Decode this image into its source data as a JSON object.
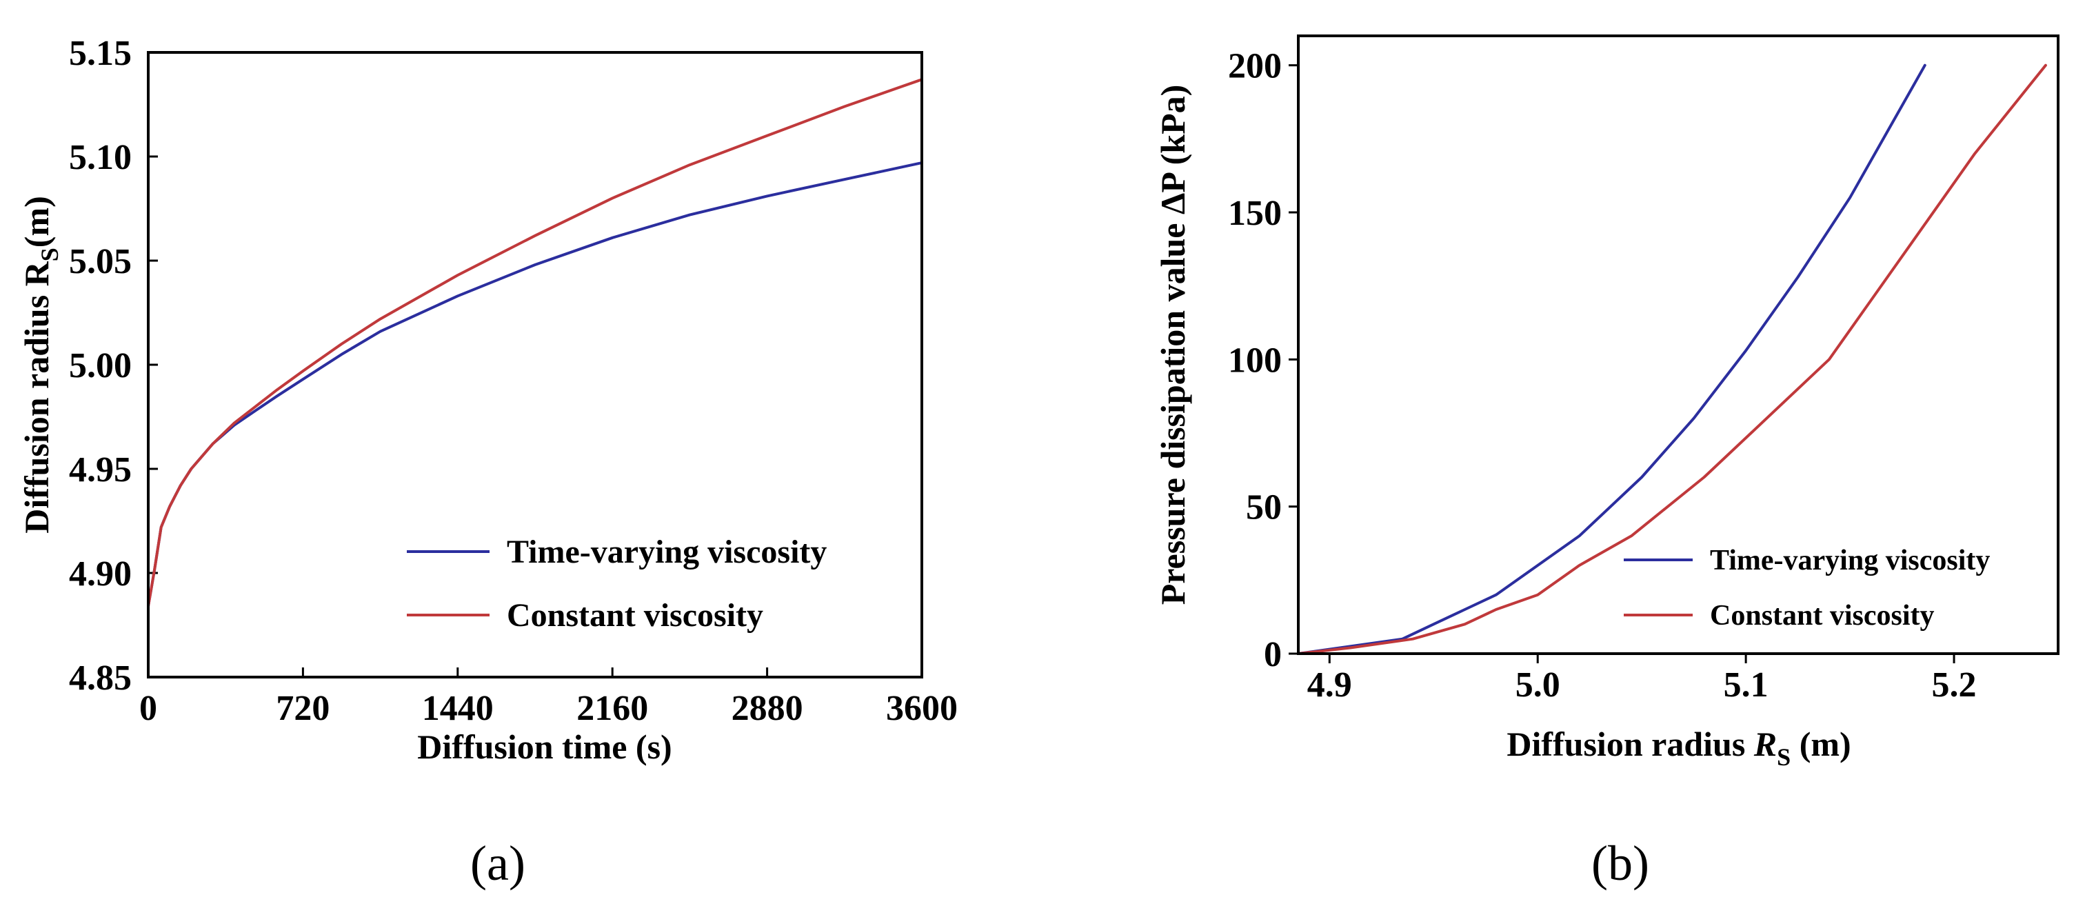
{
  "chart_data": [
    {
      "panel": "(a)",
      "type": "line",
      "xlabel": "Diffusion time (s)",
      "ylabel_main": "Diffusion radius R",
      "ylabel_sub": "S",
      "ylabel_unit": "(m)",
      "xlim": [
        0,
        3600
      ],
      "ylim": [
        4.85,
        5.15
      ],
      "xticks": [
        0,
        720,
        1440,
        2160,
        2880,
        3600
      ],
      "yticks": [
        4.85,
        4.9,
        4.95,
        5.0,
        5.05,
        5.1,
        5.15
      ],
      "xtick_labels": [
        "0",
        "720",
        "1440",
        "2160",
        "2880",
        "3600"
      ],
      "ytick_labels": [
        "4.85",
        "4.90",
        "4.95",
        "5.00",
        "5.05",
        "5.10",
        "5.15"
      ],
      "legend_position": "bottom-right",
      "series": [
        {
          "name": "Time-varying viscosity",
          "color": "#2b2e9e",
          "x": [
            0,
            30,
            60,
            100,
            150,
            200,
            300,
            400,
            500,
            600,
            720,
            900,
            1080,
            1440,
            1800,
            2160,
            2520,
            2880,
            3240,
            3600
          ],
          "y": [
            4.884,
            4.902,
            4.922,
            4.932,
            4.942,
            4.95,
            4.962,
            4.971,
            4.978,
            4.985,
            4.993,
            5.005,
            5.016,
            5.033,
            5.048,
            5.061,
            5.072,
            5.081,
            5.089,
            5.097
          ]
        },
        {
          "name": "Constant viscosity",
          "color": "#c0393b",
          "x": [
            0,
            30,
            60,
            100,
            150,
            200,
            300,
            400,
            500,
            600,
            720,
            900,
            1080,
            1440,
            1800,
            2160,
            2520,
            2880,
            3240,
            3600
          ],
          "y": [
            4.884,
            4.902,
            4.922,
            4.932,
            4.942,
            4.95,
            4.962,
            4.972,
            4.98,
            4.988,
            4.997,
            5.01,
            5.022,
            5.043,
            5.062,
            5.08,
            5.096,
            5.11,
            5.124,
            5.137
          ]
        }
      ]
    },
    {
      "panel": "(b)",
      "type": "line",
      "xlabel_main": "Diffusion radius ",
      "xlabel_symbol": "R",
      "xlabel_sub": "S",
      "xlabel_unit": " (m)",
      "ylabel": "Pressure dissipation value ΔP (kPa)",
      "xlim": [
        4.885,
        5.25
      ],
      "ylim": [
        0,
        210
      ],
      "xticks": [
        4.9,
        5.0,
        5.1,
        5.2
      ],
      "yticks": [
        0,
        50,
        100,
        150,
        200
      ],
      "xtick_labels": [
        "4.9",
        "5.0",
        "5.1",
        "5.2"
      ],
      "ytick_labels": [
        "0",
        "50",
        "100",
        "150",
        "200"
      ],
      "legend_position": "bottom-right",
      "series": [
        {
          "name": "Time-varying viscosity",
          "color": "#2b2e9e",
          "x": [
            4.885,
            4.905,
            4.935,
            4.95,
            4.965,
            4.98,
            5.0,
            5.02,
            5.035,
            5.05,
            5.075,
            5.1,
            5.125,
            5.15,
            5.17,
            5.186
          ],
          "y": [
            0,
            2,
            5,
            10,
            15,
            20,
            30,
            40,
            50,
            60,
            80,
            103,
            128,
            155,
            180,
            200
          ]
        },
        {
          "name": "Constant viscosity",
          "color": "#c0393b",
          "x": [
            4.885,
            4.91,
            4.94,
            4.965,
            4.98,
            5.0,
            5.02,
            5.045,
            5.08,
            5.11,
            5.14,
            5.16,
            5.18,
            5.21,
            5.244
          ],
          "y": [
            0,
            2,
            5,
            10,
            15,
            20,
            30,
            40,
            60,
            80,
            100,
            120,
            140,
            170,
            200
          ]
        }
      ]
    }
  ]
}
